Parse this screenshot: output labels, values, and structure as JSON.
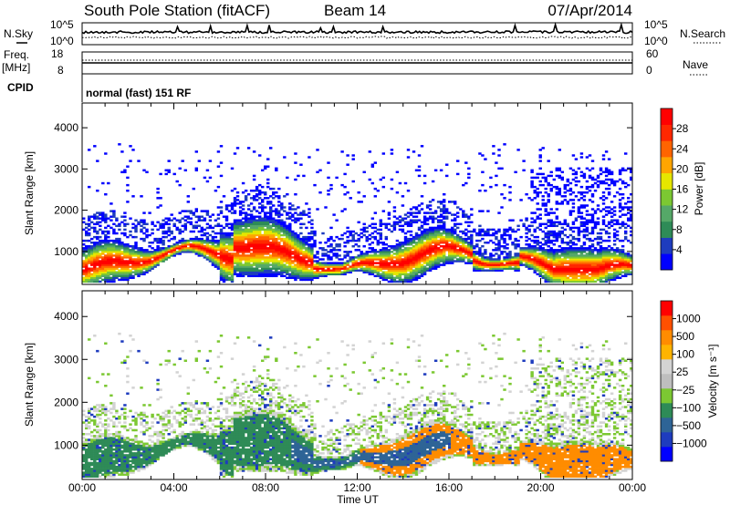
{
  "header": {
    "station": "South Pole Station (fitACF)",
    "beam": "Beam 14",
    "date": "07/Apr/2014"
  },
  "top_panels": {
    "nsky_label": "N.Sky",
    "nsky_ticks": [
      "10^5",
      "10^0"
    ],
    "nsearch_label": "N.Search",
    "nsearch_ticks": [
      "10^5",
      "10^0"
    ],
    "freq_label_1": "Freq.",
    "freq_label_2": "[MHz]",
    "freq_ticks": [
      "18",
      "8"
    ],
    "nave_label": "Nave",
    "nave_ticks": [
      "60",
      "0"
    ],
    "cpid_label": "CPID",
    "cpid_value": "normal (fast) 151 RF"
  },
  "colors": {
    "power": [
      "#0000ff",
      "#1e3cbe",
      "#2e8b57",
      "#55a868",
      "#7cc832",
      "#e6e600",
      "#ffa500",
      "#ff6400",
      "#ff2800",
      "#ff0000"
    ],
    "velocity": [
      "#ff0000",
      "#ff5000",
      "#ff8c00",
      "#ffb400",
      "#d3d3d3",
      "#bebebe",
      "#7cc832",
      "#2e8b57",
      "#2e6496",
      "#1e3cbe",
      "#0000ff"
    ]
  },
  "chart_data": [
    {
      "type": "heatmap",
      "name": "power-panel",
      "xlabel": "",
      "ylabel": "Slant Range [km]",
      "x_ticks": [
        "00:00",
        "04:00",
        "08:00",
        "12:00",
        "16:00",
        "20:00",
        "00:00"
      ],
      "y_ticks": [
        1000,
        2000,
        3000,
        4000
      ],
      "ylim": [
        200,
        4600
      ],
      "colorbar": {
        "label": "Power [dB]",
        "ticks": [
          "4",
          "8",
          "12",
          "16",
          "20",
          "24",
          "28"
        ]
      }
    },
    {
      "type": "heatmap",
      "name": "velocity-panel",
      "xlabel": "Time UT",
      "ylabel": "Slant Range [km]",
      "x_ticks": [
        "00:00",
        "04:00",
        "08:00",
        "12:00",
        "16:00",
        "20:00",
        "00:00"
      ],
      "y_ticks": [
        1000,
        2000,
        3000,
        4000
      ],
      "ylim": [
        200,
        4600
      ],
      "colorbar": {
        "label": "Velocity [m s⁻¹]",
        "ticks": [
          "1000",
          "500",
          "100",
          "25",
          "−25",
          "−100",
          "−500",
          "−1000"
        ]
      }
    }
  ]
}
